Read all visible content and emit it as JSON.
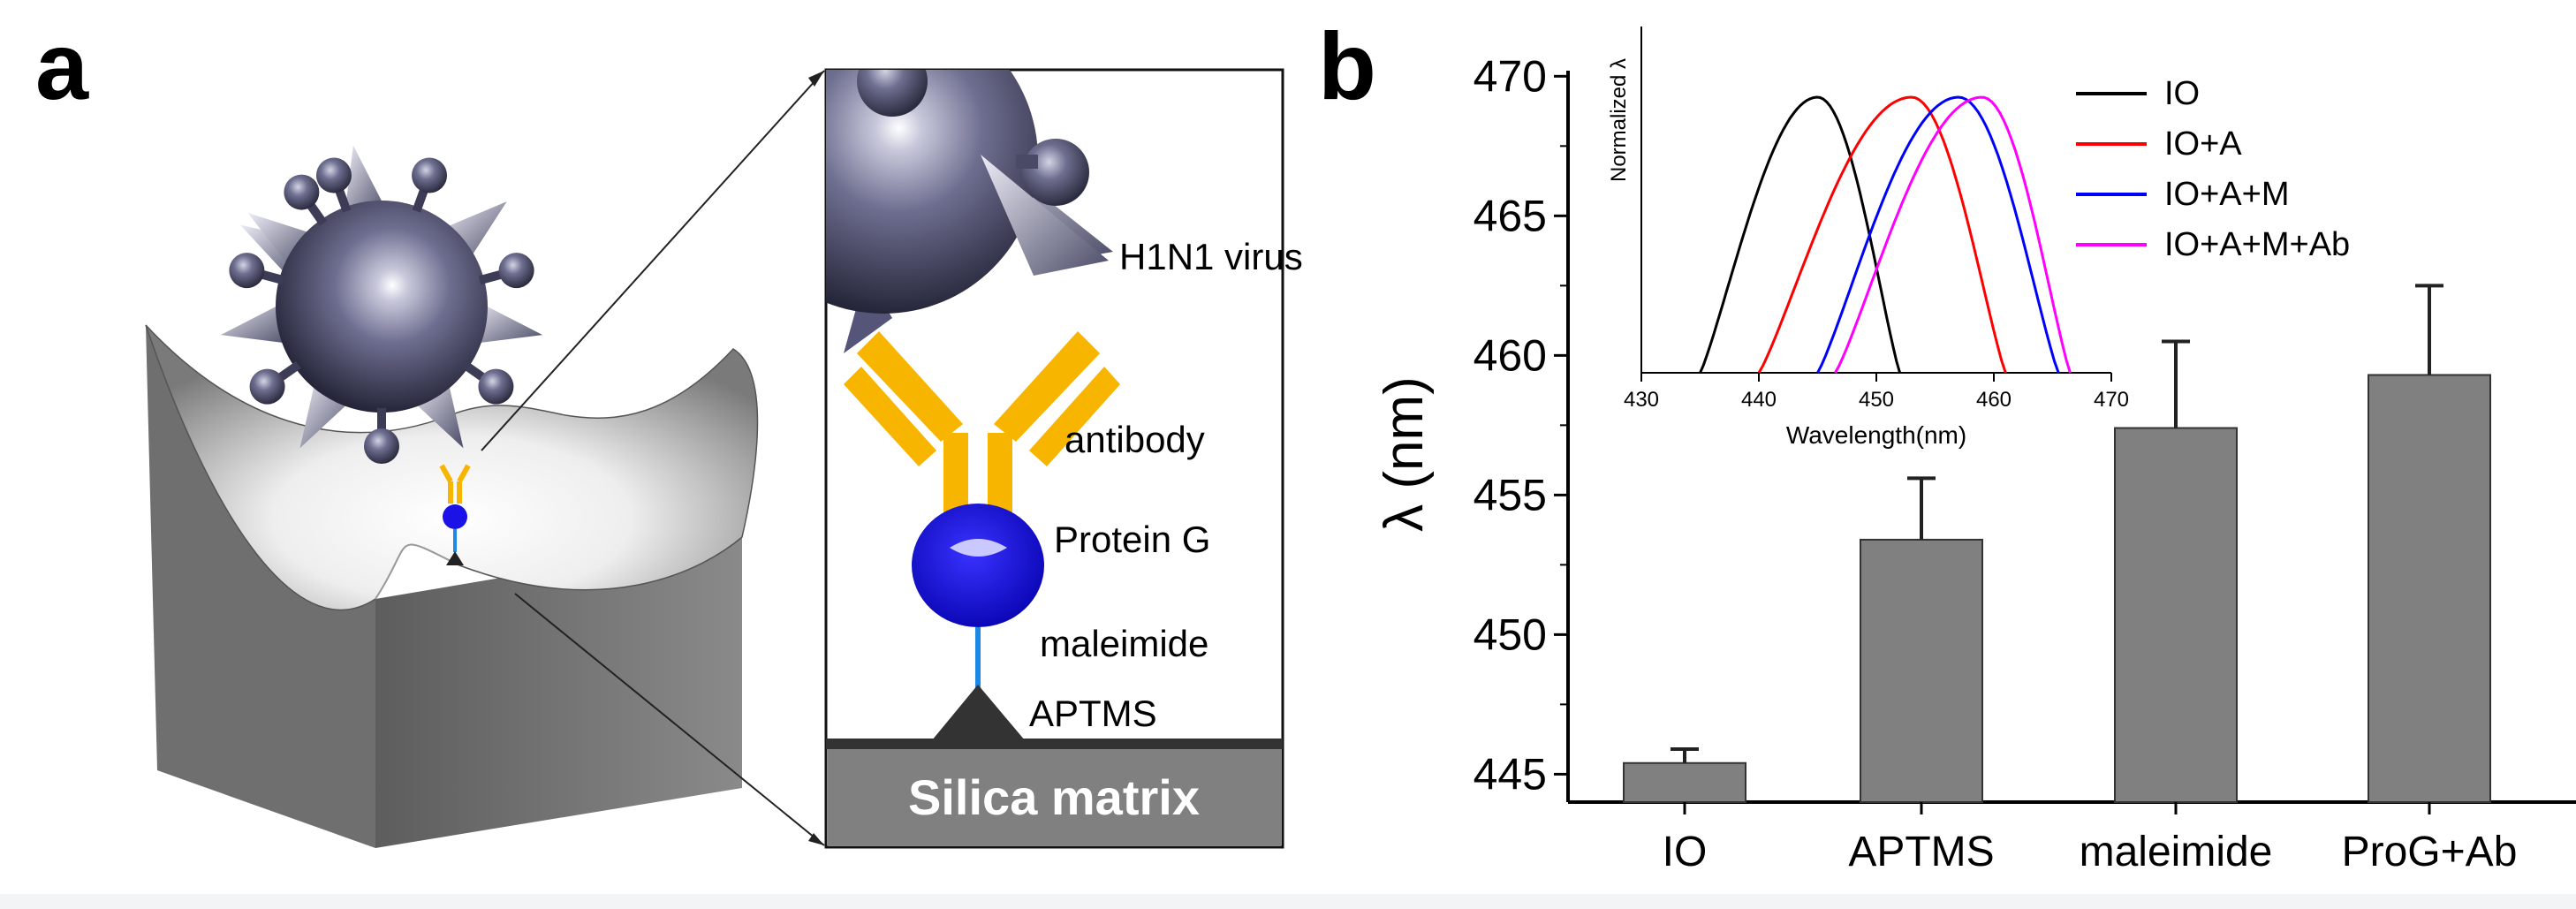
{
  "panel_a": {
    "letter": "a",
    "labels": {
      "virus": "H1N1 virus",
      "antibody": "antibody",
      "protein": "Protein G",
      "linker": "maleimide",
      "silane": "APTMS",
      "substrate": "Silica matrix"
    }
  },
  "panel_b": {
    "letter": "b"
  },
  "colors": {
    "virus": "#6e6e90",
    "antibody": "#f7b500",
    "protein": "#1a12e6",
    "bar": "#808080",
    "io": "#000000",
    "io_a": "#ff0000",
    "io_a_m": "#0000ff",
    "io_a_m_ab": "#ff00ff"
  },
  "chart_data": [
    {
      "type": "bar",
      "categories": [
        "IO",
        "APTMS",
        "maleimide",
        "ProG+Ab"
      ],
      "values": [
        445.4,
        453.4,
        457.4,
        459.3
      ],
      "errors": [
        0.5,
        2.2,
        3.1,
        3.2
      ],
      "ylabel": "λ (nm)",
      "ylim": [
        444,
        470.2
      ],
      "yticks": [
        "445",
        "450",
        "455",
        "460",
        "465",
        "470"
      ]
    },
    {
      "type": "line",
      "xlabel": "Wavelength(nm)",
      "ylabel": "Normalized λ",
      "xlim": [
        430,
        470
      ],
      "xticks": [
        "430",
        "440",
        "450",
        "460",
        "470"
      ],
      "series": [
        {
          "name": "IO",
          "peak": 445,
          "start": 435,
          "end": 452
        },
        {
          "name": "IO+A",
          "peak": 453,
          "start": 440,
          "end": 461
        },
        {
          "name": "IO+A+M",
          "peak": 457,
          "start": 445,
          "end": 465.5
        },
        {
          "name": "IO+A+M+Ab",
          "peak": 459,
          "start": 446.5,
          "end": 466.5
        }
      ]
    }
  ]
}
